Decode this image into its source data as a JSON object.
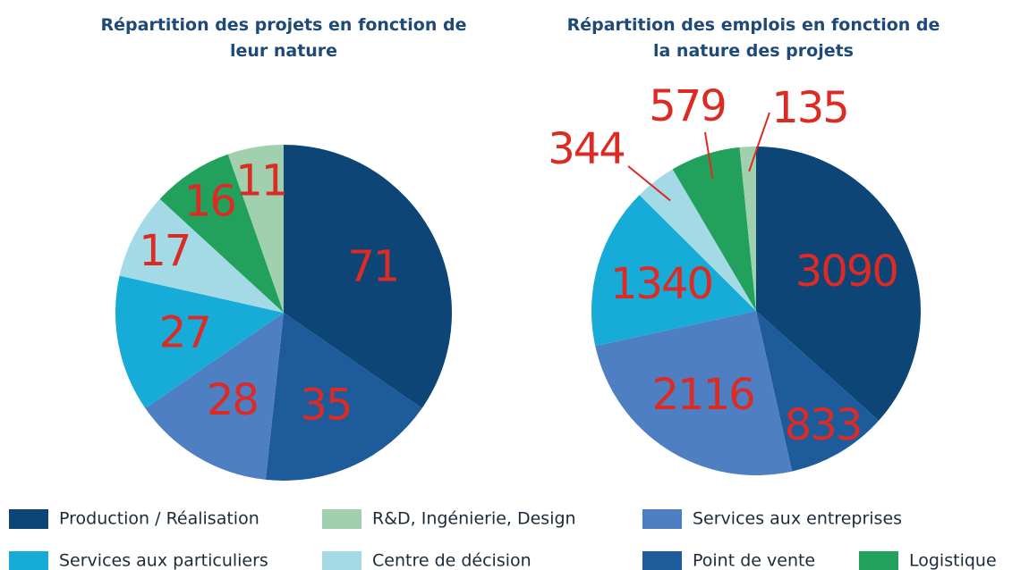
{
  "chart_data": [
    {
      "type": "pie",
      "title": "Répartition des projets en fonction de leur nature",
      "categories": [
        "Production / Réalisation",
        "Point de vente",
        "Services aux entreprises",
        "Services aux particuliers",
        "Centre de décision",
        "Logistique",
        "R&D, Ingénierie, Design"
      ],
      "values": [
        71,
        35,
        28,
        27,
        17,
        16,
        11
      ],
      "colors": [
        "#0d4577",
        "#1d5b9b",
        "#4f7fc3",
        "#17acd8",
        "#a4d9e6",
        "#21a15b",
        "#a0d0ae"
      ]
    },
    {
      "type": "pie",
      "title": "Répartition des emplois en fonction de la nature des projets",
      "categories": [
        "Production / Réalisation",
        "Point de vente",
        "Services aux entreprises",
        "Services aux particuliers",
        "Centre de décision",
        "Logistique",
        "R&D, Ingénierie, Design"
      ],
      "values": [
        3090,
        833,
        2116,
        1340,
        344,
        579,
        135
      ],
      "colors": [
        "#0d4577",
        "#1d5b9b",
        "#4f7fc3",
        "#17acd8",
        "#a4d9e6",
        "#21a15b",
        "#a0d0ae"
      ]
    }
  ]
}
